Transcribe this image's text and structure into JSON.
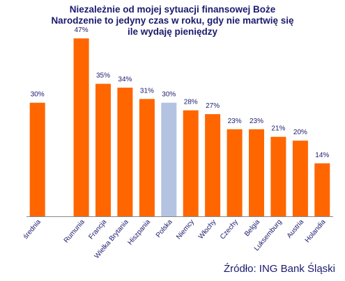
{
  "chart_data": {
    "type": "bar",
    "title_lines": [
      "Niezależnie od mojej sytuacji finansowej Boże",
      "Narodzenie to jedyny czas w roku, gdy nie martwię się",
      "ile wydaję pieniędzy"
    ],
    "categories": [
      "średnia",
      "",
      "Rumunia",
      "Francja",
      "Wielka Brytania",
      "Hiszpania",
      "Polska",
      "Niemcy",
      "Włochy",
      "Czechy",
      "Belgia",
      "Luksemburg",
      "Austria",
      "Holandia"
    ],
    "values": [
      30,
      null,
      47,
      35,
      34,
      31,
      30,
      28,
      27,
      23,
      23,
      21,
      20,
      14
    ],
    "value_labels": [
      "30%",
      "",
      "47%",
      "35%",
      "34%",
      "31%",
      "30%",
      "28%",
      "27%",
      "23%",
      "23%",
      "21%",
      "20%",
      "14%"
    ],
    "highlight_category": "Polska",
    "ylim": [
      0,
      52
    ],
    "grid": false,
    "colors": {
      "bar": "#ff6600",
      "highlight": "#b4c3e1",
      "title": "#1a1a6e",
      "axis": "#888888"
    }
  },
  "source": "Źródło: ING Bank Śląski"
}
